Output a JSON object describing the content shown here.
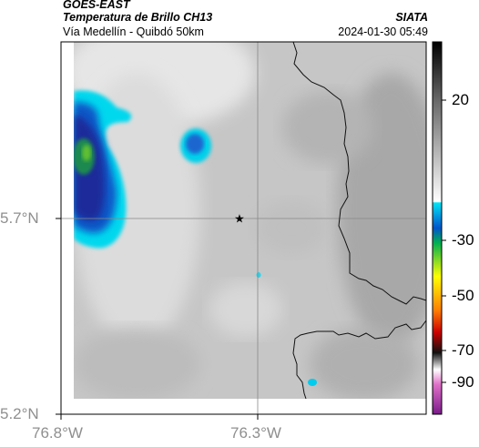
{
  "header": {
    "source": "GOES-EAST",
    "product": "Temperatura de Brillo CH13",
    "location": "Vía Medellín - Quibdó 50km",
    "org": "SIATA",
    "datetime": "2024-01-30 05:49"
  },
  "map": {
    "lat_labels": [
      "5.7°N",
      "5.2°N"
    ],
    "lon_labels": [
      "76.8°W",
      "76.3°W"
    ],
    "marker": "star-marker"
  },
  "colorbar": {
    "tick_labels": [
      "20",
      "-30",
      "-50",
      "-70",
      "-90"
    ]
  }
}
